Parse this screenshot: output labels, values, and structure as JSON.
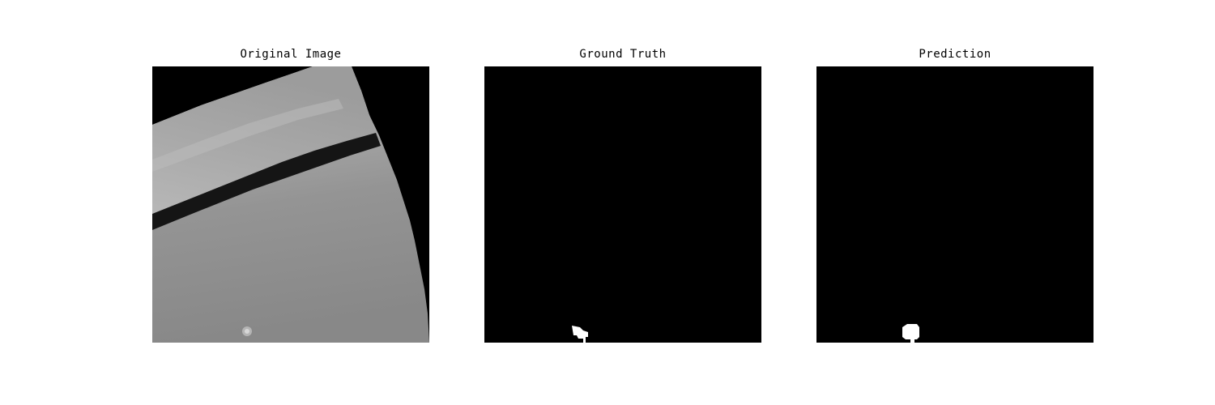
{
  "figure": {
    "panels": [
      {
        "title": "Original Image",
        "image": "mri-slice-grayscale"
      },
      {
        "title": "Ground Truth",
        "image": "binary-mask-ground-truth"
      },
      {
        "title": "Prediction",
        "image": "binary-mask-prediction"
      }
    ]
  },
  "colors": {
    "background": "#ffffff",
    "mask_background": "#000000",
    "mask_foreground": "#ffffff",
    "tissue_light": "#a9a9a9",
    "tissue_mid": "#8c8c8c",
    "dark_band": "#151515"
  }
}
